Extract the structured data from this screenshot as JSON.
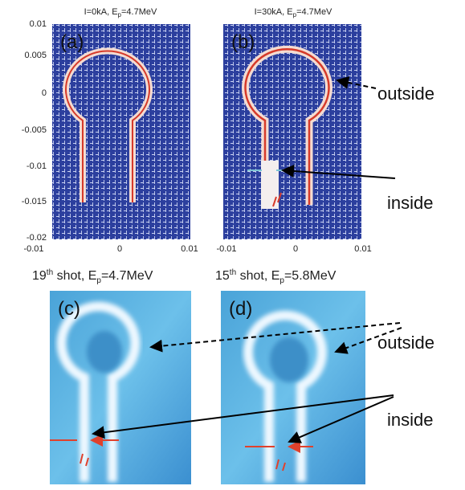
{
  "panels": [
    {
      "label": "(a)",
      "title": [
        "I=0kA, E",
        "p",
        "=4.7MeV"
      ]
    },
    {
      "label": "(b)",
      "title": [
        "I=30kA, E",
        "p",
        "=4.7MeV"
      ]
    },
    {
      "label": "(c)",
      "title": [
        "19",
        "th",
        " shot, E",
        "p",
        "=4.7MeV"
      ]
    },
    {
      "label": "(d)",
      "title": [
        "15",
        "th",
        " shot, E",
        "p",
        "=5.8MeV"
      ]
    }
  ],
  "axes": {
    "yticks": [
      "0.01",
      "0.005",
      "0",
      "-0.005",
      "-0.01",
      "-0.015",
      "-0.02"
    ],
    "xticks": [
      "-0.01",
      "0",
      "0.01"
    ]
  },
  "annotations": [
    "outside",
    "inside",
    "outside",
    "inside"
  ]
}
